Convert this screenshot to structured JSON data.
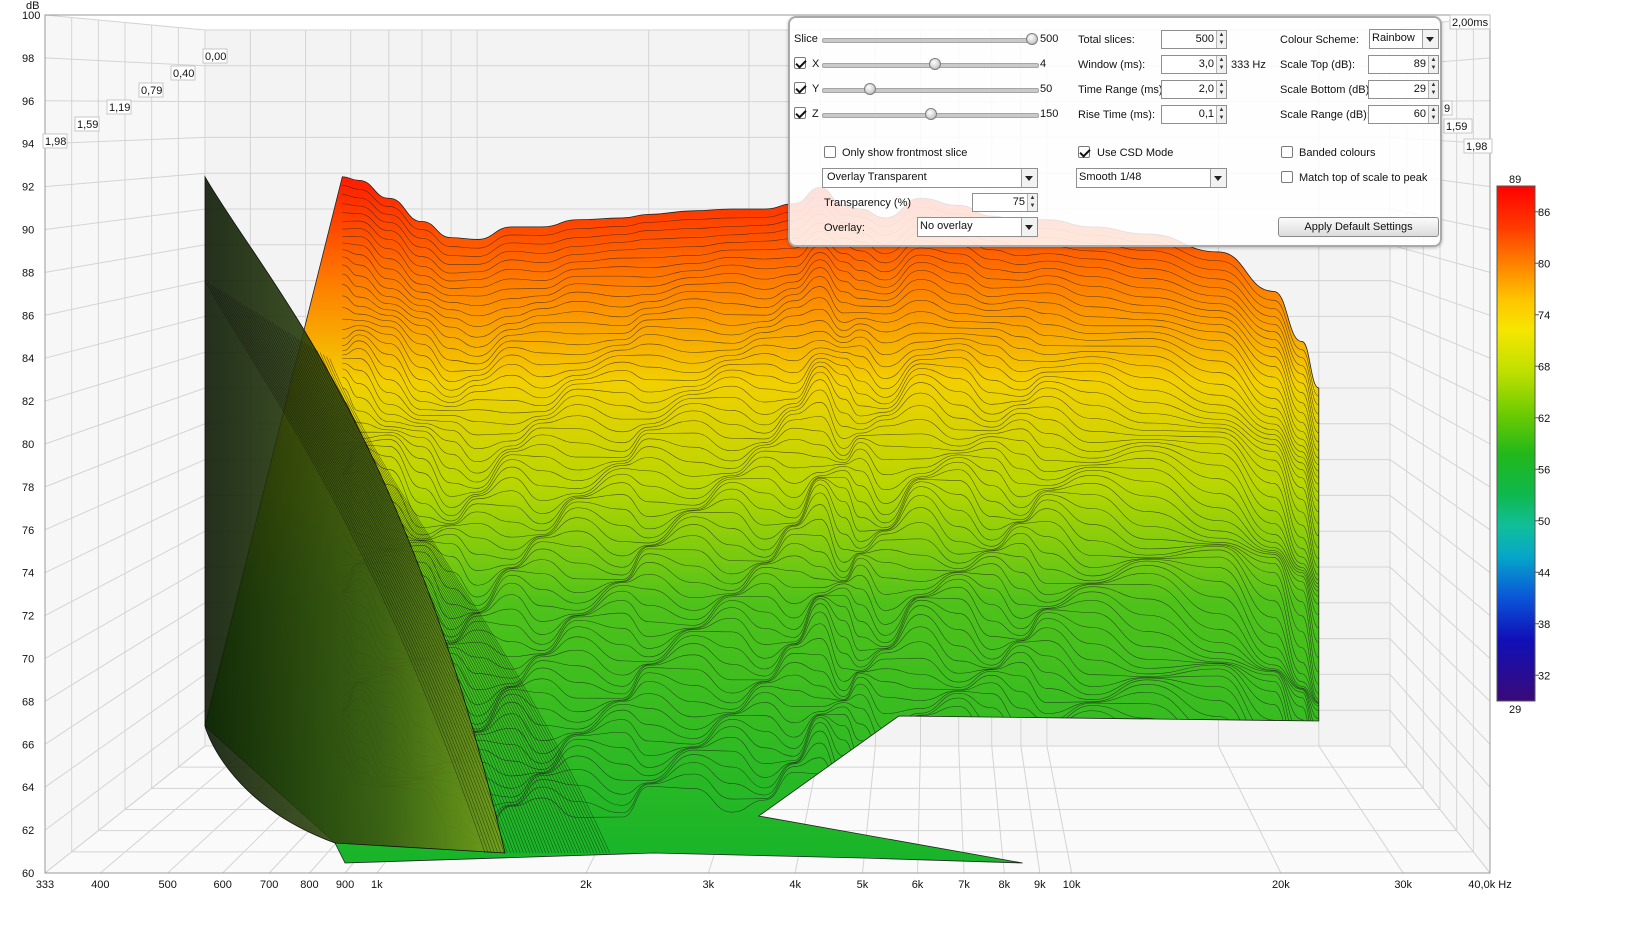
{
  "chart_data": {
    "type": "waterfall",
    "y_axis": {
      "unit": "dB",
      "ticks": [
        "100",
        "98",
        "96",
        "94",
        "92",
        "90",
        "88",
        "86",
        "84",
        "82",
        "80",
        "78",
        "76",
        "74",
        "72",
        "70",
        "68",
        "66",
        "64",
        "62",
        "60"
      ],
      "range": [
        60,
        100
      ]
    },
    "x_axis": {
      "ticks": [
        "333",
        "400",
        "500",
        "600",
        "700",
        "800",
        "900",
        "1k",
        "2k",
        "3k",
        "4k",
        "5k",
        "6k",
        "7k",
        "8k",
        "9k",
        "10k",
        "20k",
        "30k",
        "40,0k Hz"
      ],
      "values": [
        333,
        400,
        500,
        600,
        700,
        800,
        900,
        1000,
        2000,
        3000,
        4000,
        5000,
        6000,
        7000,
        8000,
        9000,
        10000,
        20000,
        30000,
        40000
      ],
      "scale": "log",
      "range": [
        333,
        40000
      ]
    },
    "time_axis": {
      "unit": "ms",
      "ticks_left": [
        "0,00",
        "0,40",
        "0,79",
        "1,19",
        "1,59",
        "1,98"
      ],
      "ticks_right": [
        "2,00ms",
        "9",
        "1,59",
        "1,98"
      ]
    },
    "colour_scale": {
      "top_label": "89",
      "bottom_label": "29",
      "ticks": [
        "86",
        "80",
        "74",
        "68",
        "62",
        "56",
        "50",
        "44",
        "38",
        "32"
      ],
      "range": [
        29,
        89
      ]
    },
    "front_slice_profile": {
      "freq_hz": [
        580,
        620,
        700,
        800,
        900,
        1000,
        1150,
        1300,
        1500,
        1800,
        2000,
        2400,
        2800,
        3200,
        3600,
        4000,
        4400,
        4700,
        5200,
        6000,
        7000,
        8000,
        9000,
        10000,
        12000,
        15000,
        20000,
        25000,
        28000,
        30000
      ],
      "db": [
        91.8,
        91.6,
        90.6,
        89.3,
        88.4,
        88.3,
        89.0,
        89.0,
        89.4,
        89.5,
        89.7,
        89.9,
        90.0,
        90.0,
        90.3,
        91.2,
        90.2,
        90.0,
        89.5,
        90.6,
        90.2,
        89.6,
        89.4,
        89.4,
        89.0,
        88.6,
        87.6,
        85.4,
        82.6,
        80.0
      ]
    },
    "grid": true
  },
  "panel": {
    "slice_label": "Slice",
    "slice_value": "500",
    "x_label": "X",
    "x_value": "4",
    "y_label": "Y",
    "y_value": "50",
    "z_label": "Z",
    "z_value": "150",
    "only_frontmost_label": "Only show frontmost slice",
    "display_mode": "Overlay Transparent",
    "transparency_label": "Transparency (%)",
    "transparency_value": "75",
    "overlay_label": "Overlay:",
    "overlay_value": "No overlay",
    "total_slices_label": "Total slices:",
    "total_slices_value": "500",
    "window_label": "Window (ms):",
    "window_value": "3,0",
    "window_freq": "333 Hz",
    "time_range_label": "Time Range (ms):",
    "time_range_value": "2,0",
    "rise_time_label": "Rise Time (ms):",
    "rise_time_value": "0,1",
    "use_csd_label": "Use CSD Mode",
    "smoothing_value": "Smooth 1/48",
    "colour_scheme_label": "Colour Scheme:",
    "colour_scheme_value": "Rainbow",
    "scale_top_label": "Scale Top (dB):",
    "scale_top_value": "89",
    "scale_bottom_label": "Scale Bottom (dB):",
    "scale_bottom_value": "29",
    "scale_range_label": "Scale Range (dB):",
    "scale_range_value": "60",
    "banded_label": "Banded colours",
    "match_top_label": "Match top of scale to peak",
    "apply_default_label": "Apply Default Settings"
  }
}
